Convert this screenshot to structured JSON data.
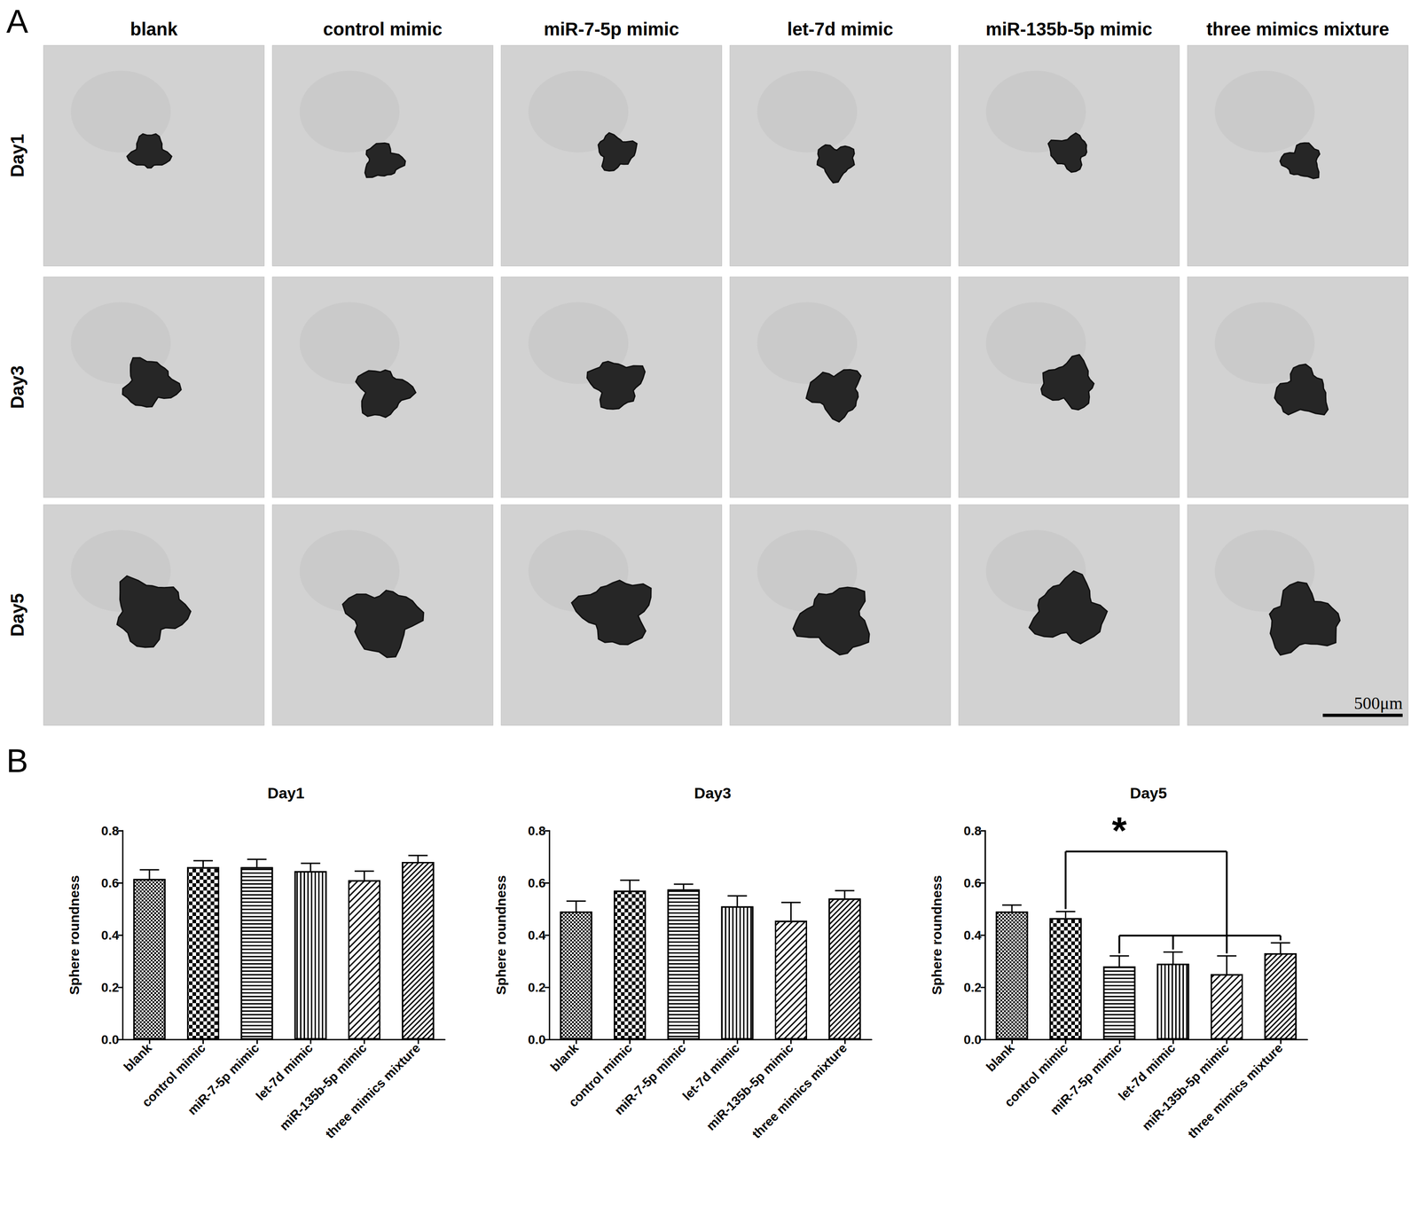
{
  "image_panel": {
    "letter": "A",
    "columns": [
      "blank",
      "control mimic",
      "miR-7-5p mimic",
      "let-7d mimic",
      "miR-135b-5p mimic",
      "three mimics mixture"
    ],
    "rows": [
      "Day1",
      "Day3",
      "Day5"
    ],
    "scale_bar": "500μm"
  },
  "chart_panel_letter": "B",
  "chart_data": [
    {
      "type": "bar",
      "title": "Day1",
      "categories": [
        "blank",
        "control mimic",
        "miR-7-5p mimic",
        "let-7d mimic",
        "miR-135b-5p mimic",
        "three mimics mixture"
      ],
      "values": [
        0.615,
        0.66,
        0.66,
        0.645,
        0.61,
        0.68
      ],
      "errors": [
        0.035,
        0.025,
        0.03,
        0.03,
        0.035,
        0.025
      ],
      "ylabel": "Sphere roundness",
      "ylim": [
        0,
        0.8
      ],
      "yticks": [
        {
          "value": 0,
          "label": "0.0"
        },
        0.2,
        0.4,
        0.6,
        0.8
      ],
      "grid": false
    },
    {
      "type": "bar",
      "title": "Day3",
      "categories": [
        "blank",
        "control mimic",
        "miR-7-5p mimic",
        "let-7d mimic",
        "miR-135b-5p mimic",
        "three mimics mixture"
      ],
      "values": [
        0.49,
        0.57,
        0.575,
        0.51,
        0.455,
        0.54
      ],
      "errors": [
        0.04,
        0.04,
        0.02,
        0.04,
        0.07,
        0.03
      ],
      "ylabel": "Sphere roundness",
      "ylim": [
        0,
        0.8
      ],
      "yticks": [
        {
          "value": 0,
          "label": "0.0"
        },
        0.2,
        0.4,
        0.6,
        0.8
      ],
      "grid": false
    },
    {
      "type": "bar",
      "title": "Day5",
      "categories": [
        "blank",
        "control mimic",
        "miR-7-5p mimic",
        "let-7d mimic",
        "miR-135b-5p mimic",
        "three mimics mixture"
      ],
      "values": [
        0.49,
        0.465,
        0.28,
        0.29,
        0.25,
        0.33
      ],
      "errors": [
        0.025,
        0.025,
        0.04,
        0.045,
        0.07,
        0.04
      ],
      "ylabel": "Sphere roundness",
      "ylim": [
        0,
        0.8
      ],
      "yticks": [
        {
          "value": 0,
          "label": "0.0"
        },
        0.2,
        0.4,
        0.6,
        0.8
      ],
      "grid": false,
      "annotations": [
        {
          "text": "*",
          "from": "control mimic",
          "to": [
            "miR-7-5p mimic",
            "let-7d mimic",
            "miR-135b-5p mimic",
            "three mimics mixture"
          ]
        }
      ]
    }
  ]
}
